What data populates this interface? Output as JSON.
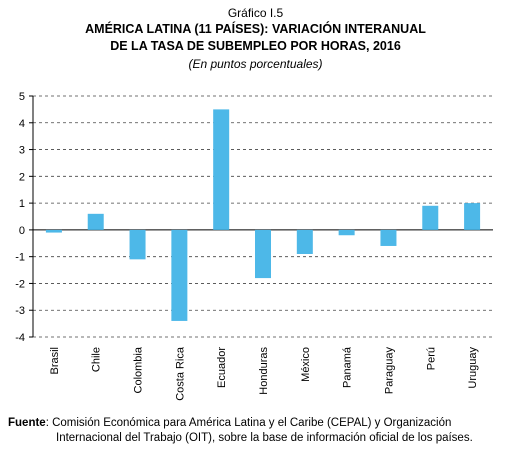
{
  "header": {
    "figure_label": "Gráfico I.5",
    "title_line1": "AMÉRICA LATINA (11 PAÍSES): VARIACIÓN INTERANUAL",
    "title_line2": "DE LA TASA DE SUBEMPLEO POR HORAS, 2016",
    "subtitle": "(En puntos porcentuales)"
  },
  "chart_data": {
    "type": "bar",
    "categories": [
      "Brasil",
      "Chile",
      "Colombia",
      "Costa Rica",
      "Ecuador",
      "Honduras",
      "México",
      "Panamá",
      "Paraguay",
      "Perú",
      "Uruguay"
    ],
    "values": [
      -0.1,
      0.6,
      -1.1,
      -3.4,
      4.5,
      -1.8,
      -0.9,
      -0.2,
      -0.6,
      0.9,
      1.0
    ],
    "ylim": [
      -4,
      5
    ],
    "yticks": [
      5,
      4,
      3,
      2,
      1,
      0,
      -1,
      -2,
      -3,
      -4
    ],
    "grid": "dashed horizontal",
    "bar_color": "#4db8e8"
  },
  "footer": {
    "source_label": "Fuente",
    "source_line1": "Comisión Económica para América Latina y el Caribe (CEPAL) y Organización",
    "source_line2": "Internacional del Trabajo (OIT), sobre la base de información oficial de los países."
  }
}
